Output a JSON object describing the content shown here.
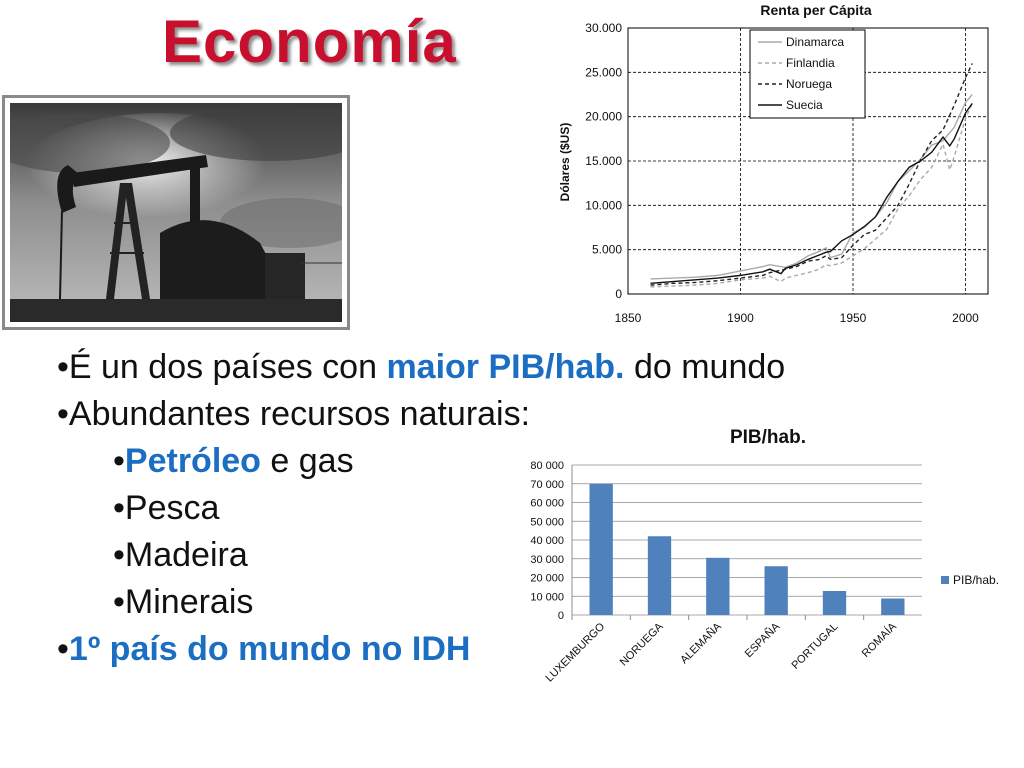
{
  "slide": {
    "title": "Economía",
    "photo_icon": "oil-pump-photo"
  },
  "bullets": [
    {
      "prefix": "•É un dos países con ",
      "highlight": "maior PIB/hab.",
      "suffix": " do mundo",
      "indent": false
    },
    {
      "prefix": "•Abundantes recursos naturais:",
      "highlight": "",
      "suffix": "",
      "indent": false
    },
    {
      "prefix": "•",
      "highlight": "Petróleo",
      "suffix": " e gas",
      "indent": true
    },
    {
      "prefix": "•Pesca",
      "highlight": "",
      "suffix": "",
      "indent": true
    },
    {
      "prefix": "•Madeira",
      "highlight": "",
      "suffix": "",
      "indent": true
    },
    {
      "prefix": "•Minerais",
      "highlight": "",
      "suffix": "",
      "indent": true
    },
    {
      "prefix": "•",
      "highlight": "1º país do mundo no IDH",
      "suffix": "",
      "indent": false
    }
  ],
  "colors": {
    "title": "#c8102e",
    "highlight": "#1b6ec2",
    "bar": "#4f81bd"
  },
  "chart_data": [
    {
      "type": "line",
      "title": "Renta per Cápita",
      "ylabel": "Dólares ($US)",
      "xlim": [
        1850,
        2010
      ],
      "ylim": [
        0,
        30000
      ],
      "x_ticks": [
        "1850",
        "1900",
        "1950",
        "2000"
      ],
      "x_tick_values": [
        1850,
        1900,
        1950,
        2000
      ],
      "y_ticks": [
        "0",
        "5.000",
        "10.000",
        "15.000",
        "20.000",
        "25.000",
        "30.000"
      ],
      "y_tick_values": [
        0,
        5000,
        10000,
        15000,
        20000,
        25000,
        30000
      ],
      "grid": true,
      "legend_position": "top-left",
      "series": [
        {
          "name": "Dinamarca",
          "style": "solid-light",
          "x": [
            1860,
            1870,
            1880,
            1890,
            1900,
            1910,
            1913,
            1920,
            1925,
            1930,
            1935,
            1938,
            1940,
            1945,
            1950,
            1955,
            1960,
            1965,
            1970,
            1975,
            1980,
            1985,
            1990,
            1995,
            2000,
            2003
          ],
          "y": [
            1700,
            1800,
            1900,
            2100,
            2600,
            3100,
            3300,
            3000,
            3500,
            4300,
            4800,
            5200,
            4100,
            4500,
            6900,
            7500,
            8700,
            10300,
            12700,
            13900,
            15200,
            16800,
            17300,
            18800,
            21600,
            22500
          ]
        },
        {
          "name": "Finlandia",
          "style": "dashed-light",
          "x": [
            1860,
            1870,
            1880,
            1890,
            1900,
            1910,
            1913,
            1918,
            1920,
            1925,
            1930,
            1935,
            1938,
            1940,
            1945,
            1950,
            1955,
            1960,
            1965,
            1970,
            1975,
            1980,
            1985,
            1990,
            1993,
            1995,
            2000,
            2003
          ],
          "y": [
            800,
            900,
            1000,
            1200,
            1600,
            1800,
            2000,
            1400,
            1800,
            2100,
            2400,
            2800,
            3300,
            3200,
            3500,
            4300,
            5100,
            6200,
            7300,
            9600,
            11100,
            12900,
            14300,
            16900,
            14000,
            15500,
            19800,
            21500
          ]
        },
        {
          "name": "Noruega",
          "style": "dashed-dark",
          "x": [
            1860,
            1870,
            1880,
            1890,
            1900,
            1910,
            1913,
            1920,
            1925,
            1930,
            1935,
            1938,
            1940,
            1945,
            1950,
            1955,
            1960,
            1965,
            1970,
            1975,
            1980,
            1985,
            1990,
            1995,
            2000,
            2003
          ],
          "y": [
            1000,
            1200,
            1300,
            1500,
            1800,
            2100,
            2400,
            2800,
            3100,
            3700,
            3900,
            4300,
            3900,
            4100,
            5500,
            6700,
            7200,
            8600,
            10000,
            12400,
            15100,
            17300,
            18500,
            21300,
            24400,
            26000
          ]
        },
        {
          "name": "Suecia",
          "style": "solid-dark",
          "x": [
            1860,
            1870,
            1880,
            1890,
            1900,
            1910,
            1913,
            1918,
            1920,
            1925,
            1930,
            1935,
            1938,
            1940,
            1945,
            1950,
            1955,
            1960,
            1965,
            1970,
            1975,
            1980,
            1985,
            1990,
            1993,
            1995,
            2000,
            2003
          ],
          "y": [
            1200,
            1400,
            1600,
            1800,
            2100,
            2500,
            2800,
            2300,
            2900,
            3300,
            3900,
            4400,
            4700,
            4800,
            6000,
            6700,
            7600,
            8700,
            10900,
            12700,
            14300,
            15000,
            16000,
            17700,
            16700,
            17500,
            20400,
            21500
          ]
        }
      ]
    },
    {
      "type": "bar",
      "title": "PIB/hab.",
      "categories": [
        "LUXEMBURGO",
        "NORUEGA",
        "ALEMAÑA",
        "ESPAÑA",
        "PORTUGAL",
        "ROMAÍA"
      ],
      "series": [
        {
          "name": "PIB/hab.",
          "values": [
            70000,
            42000,
            30500,
            26000,
            12800,
            8800
          ]
        }
      ],
      "ylim": [
        0,
        80000
      ],
      "y_ticks": [
        "0",
        "10 000",
        "20 000",
        "30 000",
        "40 000",
        "50 000",
        "60 000",
        "70 000",
        "80 000"
      ],
      "y_tick_values": [
        0,
        10000,
        20000,
        30000,
        40000,
        50000,
        60000,
        70000,
        80000
      ],
      "grid": true,
      "legend_position": "right"
    }
  ]
}
